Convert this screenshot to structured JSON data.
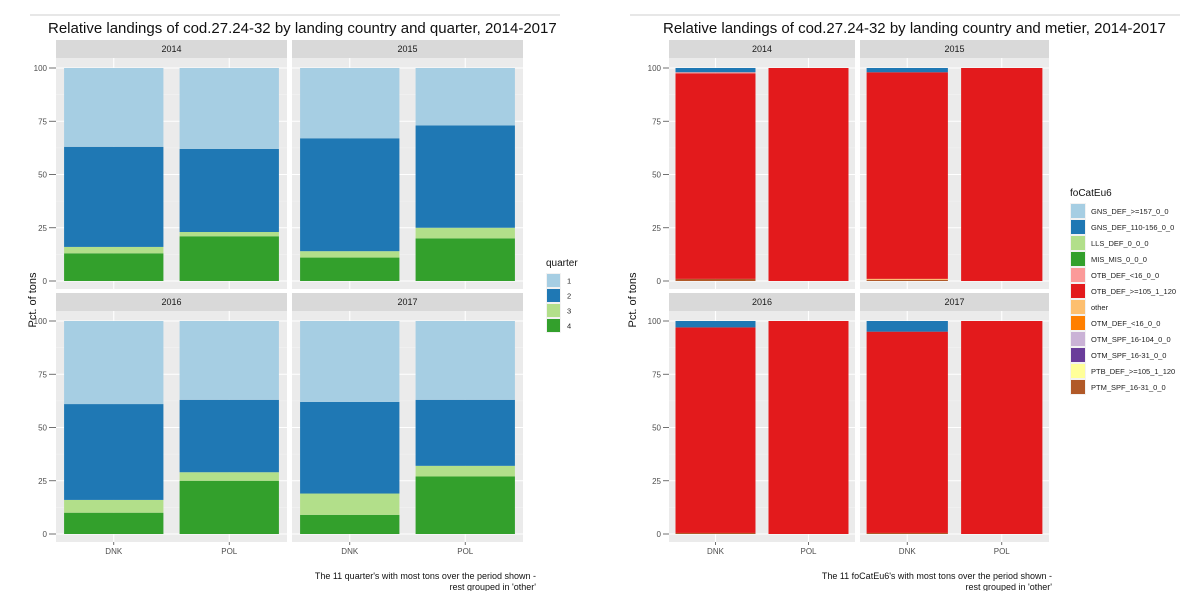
{
  "chart_data": [
    {
      "type": "bar",
      "stacked": true,
      "title": "Relative landings of cod.27.24-32 by landing country and quarter, 2014-2017",
      "ylabel": "Pct. of tons",
      "xlabel": "",
      "ylim": [
        0,
        100
      ],
      "yticks": [
        "0",
        "25",
        "50",
        "75",
        "100"
      ],
      "categories": [
        "DNK",
        "POL"
      ],
      "facets": [
        "2014",
        "2015",
        "2016",
        "2017"
      ],
      "grid": true,
      "legend": {
        "title": "quarter",
        "position": "right",
        "items": [
          {
            "label": "1",
            "color": "#a6cee3"
          },
          {
            "label": "2",
            "color": "#1f78b4"
          },
          {
            "label": "3",
            "color": "#b2df8a"
          },
          {
            "label": "4",
            "color": "#33a02c"
          }
        ]
      },
      "panels": [
        {
          "facet": "2014",
          "bars": [
            {
              "category": "DNK",
              "segments": [
                37,
                47,
                3,
                13
              ]
            },
            {
              "category": "POL",
              "segments": [
                38,
                39,
                2,
                21
              ]
            }
          ]
        },
        {
          "facet": "2015",
          "bars": [
            {
              "category": "DNK",
              "segments": [
                33,
                53,
                3,
                11
              ]
            },
            {
              "category": "POL",
              "segments": [
                27,
                48,
                5,
                20
              ]
            }
          ]
        },
        {
          "facet": "2016",
          "bars": [
            {
              "category": "DNK",
              "segments": [
                39,
                45,
                6,
                10
              ]
            },
            {
              "category": "POL",
              "segments": [
                37,
                34,
                4,
                25
              ]
            }
          ]
        },
        {
          "facet": "2017",
          "bars": [
            {
              "category": "DNK",
              "segments": [
                38,
                43,
                10,
                9
              ]
            },
            {
              "category": "POL",
              "segments": [
                37,
                31,
                5,
                27
              ]
            }
          ]
        }
      ],
      "caption": [
        "The 11 quarter's with most tons over the period shown -",
        "rest grouped in 'other'"
      ]
    },
    {
      "type": "bar",
      "stacked": true,
      "title": "Relative landings of cod.27.24-32 by landing country and metier, 2014-2017",
      "ylabel": "Pct. of tons",
      "xlabel": "",
      "ylim": [
        0,
        100
      ],
      "yticks": [
        "0",
        "25",
        "50",
        "75",
        "100"
      ],
      "categories": [
        "DNK",
        "POL"
      ],
      "facets": [
        "2014",
        "2015",
        "2016",
        "2017"
      ],
      "grid": true,
      "legend": {
        "title": "foCatEu6",
        "position": "right",
        "items": [
          {
            "label": "GNS_DEF_>=157_0_0",
            "color": "#a6cee3"
          },
          {
            "label": "GNS_DEF_110-156_0_0",
            "color": "#1f78b4"
          },
          {
            "label": "LLS_DEF_0_0_0",
            "color": "#b2df8a"
          },
          {
            "label": "MIS_MIS_0_0_0",
            "color": "#33a02c"
          },
          {
            "label": "OTB_DEF_<16_0_0",
            "color": "#fb9a99"
          },
          {
            "label": "OTB_DEF_>=105_1_120",
            "color": "#e31a1c"
          },
          {
            "label": "other",
            "color": "#fdbf6f"
          },
          {
            "label": "OTM_DEF_<16_0_0",
            "color": "#ff7f00"
          },
          {
            "label": "OTM_SPF_16-104_0_0",
            "color": "#cab2d6"
          },
          {
            "label": "OTM_SPF_16-31_0_0",
            "color": "#6a3d9a"
          },
          {
            "label": "PTB_DEF_>=105_1_120",
            "color": "#ffff99"
          },
          {
            "label": "PTM_SPF_16-31_0_0",
            "color": "#b15928"
          }
        ]
      },
      "panels": [
        {
          "facet": "2014",
          "bars": [
            {
              "category": "DNK",
              "segments": [
                0,
                2,
                0,
                0,
                0.5,
                96.5,
                0,
                0,
                0,
                0,
                0,
                1
              ]
            },
            {
              "category": "POL",
              "segments": [
                0,
                0,
                0,
                0,
                0,
                100,
                0,
                0,
                0,
                0,
                0,
                0
              ]
            }
          ]
        },
        {
          "facet": "2015",
          "bars": [
            {
              "category": "DNK",
              "segments": [
                0,
                2,
                0,
                0,
                0,
                97,
                0.5,
                0,
                0,
                0,
                0,
                0.5
              ]
            },
            {
              "category": "POL",
              "segments": [
                0,
                0,
                0,
                0,
                0,
                100,
                0,
                0,
                0,
                0,
                0,
                0
              ]
            }
          ]
        },
        {
          "facet": "2016",
          "bars": [
            {
              "category": "DNK",
              "segments": [
                0,
                3,
                0,
                0,
                0,
                96.5,
                0,
                0,
                0,
                0,
                0,
                0.5
              ]
            },
            {
              "category": "POL",
              "segments": [
                0,
                0,
                0,
                0,
                0,
                100,
                0,
                0,
                0,
                0,
                0,
                0
              ]
            }
          ]
        },
        {
          "facet": "2017",
          "bars": [
            {
              "category": "DNK",
              "segments": [
                0,
                5,
                0,
                0,
                0,
                94.5,
                0,
                0,
                0,
                0,
                0,
                0.5
              ]
            },
            {
              "category": "POL",
              "segments": [
                0,
                0,
                0,
                0,
                0,
                100,
                0,
                0,
                0,
                0,
                0,
                0
              ]
            }
          ]
        }
      ],
      "caption": [
        "The 11 foCatEu6's with most tons over the period shown -",
        "rest grouped in 'other'"
      ]
    }
  ]
}
